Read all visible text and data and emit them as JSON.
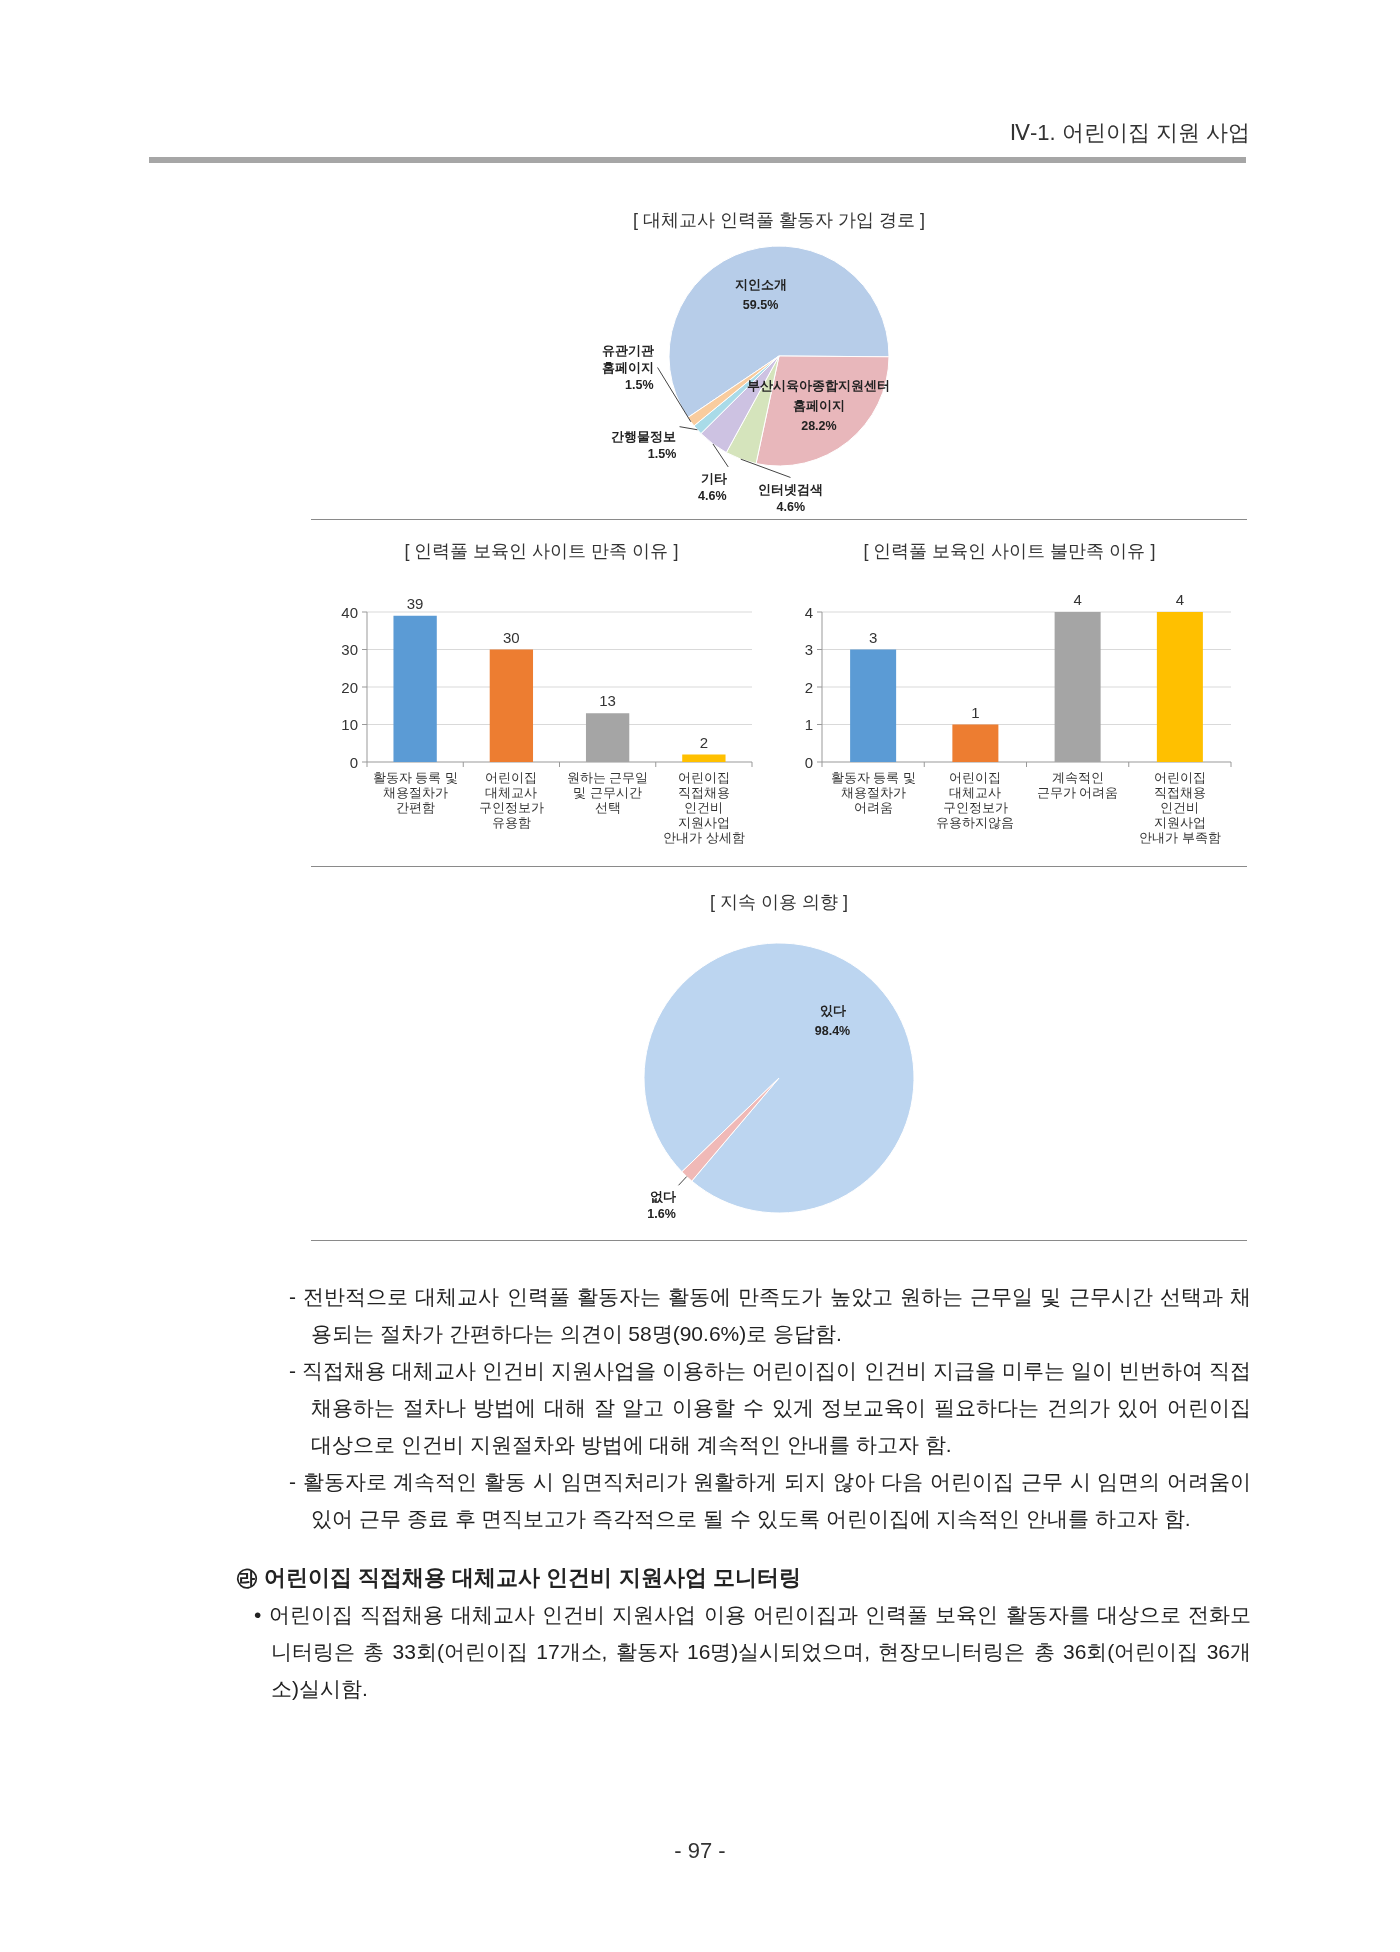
{
  "chart_data": [
    {
      "type": "pie",
      "title": "[ 대체교사 인력풀 활동자 가입 경로 ]",
      "categories": [
        "지인소개",
        "부산시육아종합지원센터\n홈페이지",
        "인터넷검색",
        "기타",
        "간행물정보",
        "유관기관\n홈페이지"
      ],
      "values": [
        59.5,
        28.2,
        4.6,
        4.6,
        1.5,
        1.5
      ],
      "colors": [
        "#b7cde9",
        "#e8b7bb",
        "#d5e4bc",
        "#cdc2e2",
        "#a9dbe8",
        "#f9cc9e"
      ],
      "value_labels": [
        "59.5%",
        "28.2%",
        "4.6%",
        "4.6%",
        "1.5%",
        "1.5%"
      ],
      "annotations": [
        "Ⅳ-1. 어린이집 지원 사업"
      ]
    },
    {
      "type": "bar",
      "title": "[ 인력풀 보육인 사이트 만족 이유 ]",
      "categories": [
        "활동자 등록 및\n채용절차가\n간편함",
        "어린이집\n대체교사\n구인정보가\n유용함",
        "원하는 근무일\n및 근무시간\n선택",
        "어린이집\n직접채용\n인건비\n지원사업\n안내가 상세함"
      ],
      "values": [
        39,
        30,
        13,
        2
      ],
      "colors": [
        "#5b9bd5",
        "#ed7d31",
        "#a5a5a5",
        "#ffc000"
      ],
      "ylim": [
        0,
        40
      ],
      "yticks": [
        0,
        10,
        20,
        30,
        40
      ],
      "grid": "y",
      "data_labels": true
    },
    {
      "type": "bar",
      "title": "[ 인력풀 보육인 사이트 불만족 이유 ]",
      "categories": [
        "활동자 등록 및\n채용절차가\n어려움",
        "어린이집\n대체교사\n구인정보가\n유용하지않음",
        "계속적인\n근무가 어려움",
        "어린이집\n직접채용\n인건비\n지원사업\n안내가 부족함"
      ],
      "values": [
        3,
        1,
        4,
        4
      ],
      "colors": [
        "#5b9bd5",
        "#ed7d31",
        "#a5a5a5",
        "#ffc000"
      ],
      "ylim": [
        0,
        4
      ],
      "yticks": [
        0,
        1,
        2,
        3,
        4
      ],
      "grid": "y",
      "data_labels": true
    },
    {
      "type": "pie",
      "title": "[ 지속 이용 의향 ]",
      "categories": [
        "있다",
        "없다"
      ],
      "values": [
        98.4,
        1.6
      ],
      "colors": [
        "#bcd5f0",
        "#f0b9b7"
      ],
      "value_labels": [
        "98.4%",
        "1.6%"
      ],
      "annotations": [
        "- 전반적으로 대체교사 인력풀 활동자는 활동에 만족도가 높았고 원하는 근무일 및 근무시간 선택과 채용되는 절차가 간편하다는 의견이 58명(90.6%)로 응답함.",
        "- 직접채용 대체교사 인건비 지원사업을 이용하는 어린이집이 인건비 지급을 미루는 일이 빈번하여 직접채용하는 절차나 방법에 대해 잘 알고 이용할 수 있게 정보교육이 필요하다는 건의가 있어 어린이집 대상으로 인건비 지원절차와 방법에 대해 계속적인 안내를 하고자 함.",
        "- 활동자로 계속적인 활동 시 임면직처리가 원활하게 되지 않아 다음 어린이집 근무 시 임면의 어려움이 있어 근무 종료 후 면직보고가 즉각적으로 될 수 있도록 어린이집에 지속적인 안내를 하고자 함.",
        "㉱ 어린이집 직접채용 대체교사 인건비 지원사업 모니터링",
        "• 어린이집 직접채용 대체교사 인건비 지원사업 이용 어린이집과 인력풀 보육인 활동자를 대상으로 전화모니터링은 총 33회(어린이집 17개소, 활동자 16명)실시되었으며, 현장모니터링은 총 36회(어린이집 36개소)실시함.",
        "- 97 -"
      ]
    }
  ]
}
